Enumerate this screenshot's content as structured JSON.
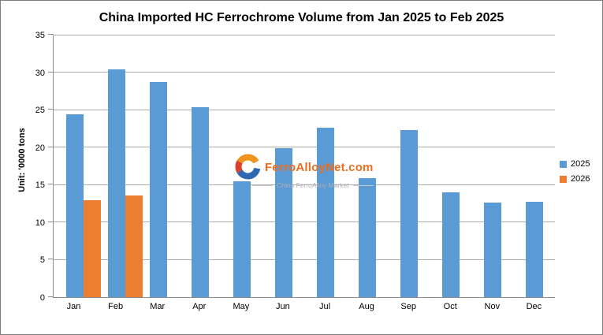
{
  "title": "China Imported HC Ferrochrome Volume from Jan 2025 to Feb 2025",
  "y_axis": {
    "unit_label": "Unit: '0000 tons",
    "ticks": [
      "0",
      "5",
      "10",
      "15",
      "20",
      "25",
      "30",
      "35"
    ],
    "min": 0,
    "max": 35
  },
  "x_axis": {
    "categories": [
      "Jan",
      "Feb",
      "Mar",
      "Apr",
      "May",
      "Jun",
      "Jul",
      "Aug",
      "Sep",
      "Oct",
      "Nov",
      "Dec"
    ]
  },
  "legend": {
    "items": [
      {
        "label": "2025",
        "color": "#5b9bd5"
      },
      {
        "label": "2026",
        "color": "#ed7d31"
      }
    ]
  },
  "watermark": {
    "brand": "FerroAlloyNet.com",
    "tagline": "China FerroAlloy Market",
    "logo": "ferroalloynet-swirl-logo"
  },
  "chart_data": {
    "type": "bar",
    "title": "China Imported HC Ferrochrome Volume from Jan 2025 to Feb 2025",
    "categories": [
      "Jan",
      "Feb",
      "Mar",
      "Apr",
      "May",
      "Jun",
      "Jul",
      "Aug",
      "Sep",
      "Oct",
      "Nov",
      "Dec"
    ],
    "series": [
      {
        "name": "2025",
        "color": "#5b9bd5",
        "values": [
          24.4,
          30.4,
          28.7,
          25.3,
          15.5,
          19.9,
          22.6,
          15.9,
          22.3,
          14.0,
          12.6,
          12.7
        ]
      },
      {
        "name": "2026",
        "color": "#ed7d31",
        "values": [
          12.9,
          13.6,
          null,
          null,
          null,
          null,
          null,
          null,
          null,
          null,
          null,
          null
        ]
      }
    ],
    "xlabel": "",
    "ylabel": "Unit: '0000 tons",
    "ylim": [
      0,
      35
    ],
    "grid": true,
    "legend_position": "right"
  },
  "colors": {
    "bar_2025": "#5b9bd5",
    "bar_2026": "#ed7d31",
    "gridline": "#ababab",
    "axis_line": "#8c8c8c",
    "frame_border": "#7f7f7f",
    "watermark_orange": "#ed6d1f",
    "watermark_gray": "#b0b0b0"
  }
}
